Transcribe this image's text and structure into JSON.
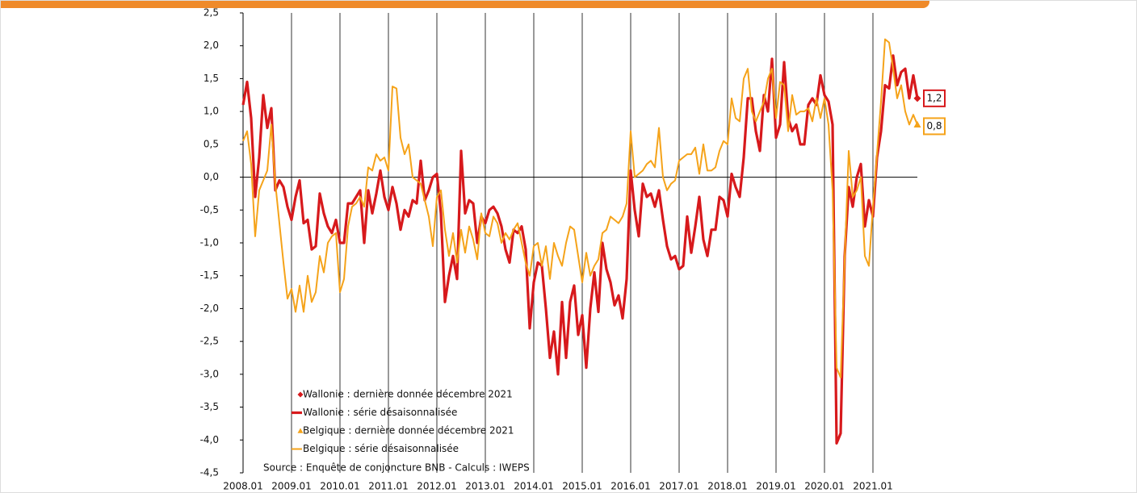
{
  "chart_data": {
    "type": "line",
    "categories": [
      "2008.01",
      null,
      null,
      null,
      null,
      null,
      null,
      null,
      null,
      null,
      null,
      null,
      "2009.01",
      null,
      null,
      null,
      null,
      null,
      null,
      null,
      null,
      null,
      null,
      null,
      "2010.01",
      null,
      null,
      null,
      null,
      null,
      null,
      null,
      null,
      null,
      null,
      null,
      "2011.01",
      null,
      null,
      null,
      null,
      null,
      null,
      null,
      null,
      null,
      null,
      null,
      "2012.01",
      null,
      null,
      null,
      null,
      null,
      null,
      null,
      null,
      null,
      null,
      null,
      "2013.01",
      null,
      null,
      null,
      null,
      null,
      null,
      null,
      null,
      null,
      null,
      null,
      "2014.01",
      null,
      null,
      null,
      null,
      null,
      null,
      null,
      null,
      null,
      null,
      null,
      "2015.01",
      null,
      null,
      null,
      null,
      null,
      null,
      null,
      null,
      null,
      null,
      null,
      "2016.01",
      null,
      null,
      null,
      null,
      null,
      null,
      null,
      null,
      null,
      null,
      null,
      "2017.01",
      null,
      null,
      null,
      null,
      null,
      null,
      null,
      null,
      null,
      null,
      null,
      "2018.01",
      null,
      null,
      null,
      null,
      null,
      null,
      null,
      null,
      null,
      null,
      null,
      "2019.01",
      null,
      null,
      null,
      null,
      null,
      null,
      null,
      null,
      null,
      null,
      null,
      "2020.01",
      null,
      null,
      null,
      null,
      null,
      null,
      null,
      null,
      null,
      null,
      null,
      "2021.01",
      null,
      null,
      null,
      null,
      null,
      null,
      null,
      null,
      null,
      null,
      null
    ],
    "series": [
      {
        "name": "Wallonie : série désaisonnalisée",
        "color": "#d7191c",
        "width": 3.2,
        "values": [
          1.1,
          1.45,
          0.9,
          -0.3,
          0.3,
          1.25,
          0.75,
          1.05,
          -0.2,
          -0.05,
          -0.15,
          -0.45,
          -0.65,
          -0.3,
          -0.05,
          -0.7,
          -0.65,
          -1.1,
          -1.05,
          -0.25,
          -0.55,
          -0.75,
          -0.85,
          -0.65,
          -1.0,
          -1.0,
          -0.4,
          -0.4,
          -0.3,
          -0.2,
          -1.0,
          -0.2,
          -0.55,
          -0.25,
          0.1,
          -0.3,
          -0.5,
          -0.15,
          -0.4,
          -0.8,
          -0.5,
          -0.6,
          -0.35,
          -0.4,
          0.25,
          -0.35,
          -0.2,
          0.0,
          0.05,
          -0.55,
          -1.9,
          -1.5,
          -1.2,
          -1.55,
          0.4,
          -0.55,
          -0.35,
          -0.4,
          -1.0,
          -0.6,
          -0.7,
          -0.5,
          -0.45,
          -0.55,
          -0.75,
          -1.1,
          -1.3,
          -0.8,
          -0.85,
          -0.75,
          -1.1,
          -2.3,
          -1.6,
          -1.3,
          -1.35,
          -2.0,
          -2.75,
          -2.35,
          -3.0,
          -1.9,
          -2.75,
          -1.9,
          -1.65,
          -2.4,
          -2.1,
          -2.9,
          -2.0,
          -1.45,
          -2.05,
          -1.0,
          -1.4,
          -1.6,
          -1.95,
          -1.8,
          -2.15,
          -1.55,
          0.1,
          -0.5,
          -0.9,
          -0.1,
          -0.3,
          -0.25,
          -0.45,
          -0.2,
          -0.65,
          -1.05,
          -1.25,
          -1.2,
          -1.4,
          -1.35,
          -0.6,
          -1.15,
          -0.75,
          -0.3,
          -0.95,
          -1.2,
          -0.8,
          -0.8,
          -0.3,
          -0.35,
          -0.6,
          0.05,
          -0.15,
          -0.3,
          0.3,
          1.2,
          1.2,
          0.7,
          0.4,
          1.25,
          1.0,
          1.8,
          0.6,
          0.8,
          1.75,
          0.9,
          0.7,
          0.8,
          0.5,
          0.5,
          1.1,
          1.2,
          1.1,
          1.55,
          1.25,
          1.15,
          0.8,
          -4.05,
          -3.9,
          -1.2,
          -0.15,
          -0.45,
          0.0,
          0.2,
          -0.75,
          -0.35,
          -0.6,
          0.3,
          0.7,
          1.4,
          1.35,
          1.85,
          1.4,
          1.6,
          1.65,
          1.2,
          1.55,
          1.2
        ]
      },
      {
        "name": "Belgique : série désaisonnalisée",
        "color": "#f5a31a",
        "width": 2,
        "values": [
          0.55,
          0.7,
          0.2,
          -0.9,
          -0.2,
          -0.05,
          0.1,
          0.8,
          -0.1,
          -0.7,
          -1.3,
          -1.85,
          -1.7,
          -2.05,
          -1.65,
          -2.05,
          -1.5,
          -1.9,
          -1.75,
          -1.2,
          -1.45,
          -1.0,
          -0.9,
          -0.85,
          -1.75,
          -1.55,
          -0.75,
          -0.45,
          -0.4,
          -0.3,
          -0.45,
          0.15,
          0.1,
          0.35,
          0.25,
          0.3,
          0.1,
          1.38,
          1.35,
          0.6,
          0.35,
          0.5,
          0.0,
          -0.05,
          -0.1,
          -0.35,
          -0.6,
          -1.05,
          -0.3,
          -0.2,
          -0.8,
          -1.2,
          -0.85,
          -1.3,
          -0.8,
          -1.15,
          -0.75,
          -0.95,
          -1.25,
          -0.55,
          -0.85,
          -0.9,
          -0.6,
          -0.7,
          -1.0,
          -0.85,
          -0.95,
          -0.8,
          -0.7,
          -1.0,
          -1.3,
          -1.5,
          -1.05,
          -1.0,
          -1.35,
          -1.05,
          -1.55,
          -1.0,
          -1.2,
          -1.35,
          -1.0,
          -0.75,
          -0.8,
          -1.2,
          -1.6,
          -1.15,
          -1.5,
          -1.35,
          -1.25,
          -0.85,
          -0.8,
          -0.6,
          -0.65,
          -0.7,
          -0.6,
          -0.4,
          0.7,
          0.0,
          0.05,
          0.1,
          0.2,
          0.25,
          0.15,
          0.75,
          0.0,
          -0.2,
          -0.1,
          -0.05,
          0.25,
          0.3,
          0.35,
          0.35,
          0.45,
          0.05,
          0.5,
          0.1,
          0.1,
          0.15,
          0.4,
          0.55,
          0.5,
          1.2,
          0.9,
          0.85,
          1.5,
          1.65,
          1.0,
          0.85,
          1.0,
          1.15,
          1.5,
          1.65,
          0.9,
          1.45,
          1.4,
          0.7,
          1.25,
          0.95,
          1.0,
          1.0,
          1.05,
          0.85,
          1.2,
          0.9,
          1.2,
          0.8,
          -0.2,
          -2.9,
          -3.05,
          -1.25,
          0.4,
          -0.3,
          -0.2,
          0.0,
          -1.2,
          -1.35,
          -0.45,
          0.35,
          1.15,
          2.1,
          2.05,
          1.65,
          1.2,
          1.4,
          1.0,
          0.8,
          0.95,
          0.8
        ]
      }
    ],
    "last_points": [
      {
        "name": "Wallonie : dernière donnée décembre 2021",
        "color": "#d7191c",
        "marker": "diamond",
        "value": 1.2,
        "value_label": "1,2"
      },
      {
        "name": "Belgique : dernière donnée décembre 2021",
        "color": "#f5a31a",
        "marker": "triangle",
        "value": 0.8,
        "value_label": "0,8"
      }
    ],
    "source": "Source : Enquête de conjoncture BNB - Calculs : IWEPS",
    "ylim": [
      -4.5,
      2.5
    ],
    "yticks": [
      {
        "value": -4.5,
        "label": "-4,5"
      },
      {
        "value": -4,
        "label": "-4,0"
      },
      {
        "value": -3.5,
        "label": "-3,5"
      },
      {
        "value": -3,
        "label": "-3,0"
      },
      {
        "value": -2.5,
        "label": "-2,5"
      },
      {
        "value": -2,
        "label": "-2,0"
      },
      {
        "value": -1.5,
        "label": "-1,5"
      },
      {
        "value": -1,
        "label": "-1,0"
      },
      {
        "value": -0.5,
        "label": "-0,5"
      },
      {
        "value": 0,
        "label": "0,0"
      },
      {
        "value": 0.5,
        "label": "0,5"
      },
      {
        "value": 1,
        "label": "1,0"
      },
      {
        "value": 1.5,
        "label": "1,5"
      },
      {
        "value": 2,
        "label": "2,0"
      },
      {
        "value": 2.5,
        "label": "2,5"
      }
    ],
    "vertical_grid": true
  }
}
